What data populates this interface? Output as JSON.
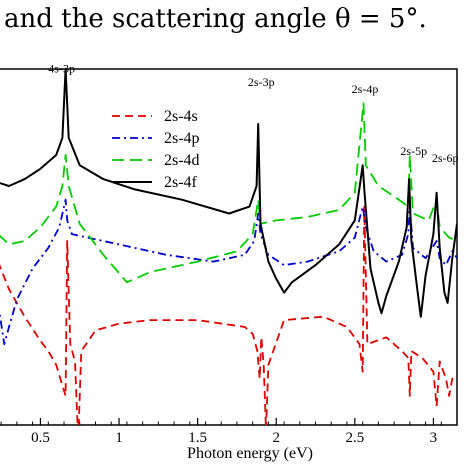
{
  "caption": {
    "text": "and the scattering angle θ = 5°."
  },
  "colors": {
    "2s-4s": "#dd0000",
    "2s-4p": "#0000cc",
    "2s-4d": "#00cc00",
    "2s-4f": "#000000"
  },
  "chart_data": {
    "type": "line",
    "title": "",
    "xlabel": "Photon energy (eV)",
    "ylabel": "",
    "xlim": [
      0.23,
      3.15
    ],
    "ylim": [
      0.0,
      1.0
    ],
    "xticks": [
      0.5,
      1,
      1.5,
      2,
      2.5,
      3
    ],
    "xtick_labels": [
      "0.5",
      "1",
      "1.5",
      "2",
      "2.5",
      "3"
    ],
    "grid": false,
    "legend_position": "top-center",
    "annotations": [
      "4s-3p",
      "2s-3p",
      "2s-4p",
      "2s-5p",
      "2s-6p"
    ],
    "series": [
      {
        "name": "2s-4s",
        "style": "dashed",
        "points": [
          [
            0.23,
            0.44
          ],
          [
            0.3,
            0.36
          ],
          [
            0.4,
            0.28
          ],
          [
            0.5,
            0.21
          ],
          [
            0.55,
            0.18
          ],
          [
            0.6,
            0.14
          ],
          [
            0.64,
            0.08
          ],
          [
            0.66,
            0.05
          ],
          [
            0.67,
            0.5
          ],
          [
            0.69,
            0.2
          ],
          [
            0.72,
            0.15
          ],
          [
            0.74,
            -0.08
          ],
          [
            0.76,
            0.18
          ],
          [
            0.85,
            0.24
          ],
          [
            1.0,
            0.26
          ],
          [
            1.2,
            0.27
          ],
          [
            1.5,
            0.27
          ],
          [
            1.8,
            0.25
          ],
          [
            1.85,
            0.23
          ],
          [
            1.88,
            0.18
          ],
          [
            1.895,
            0.1
          ],
          [
            1.905,
            0.22
          ],
          [
            1.92,
            0.14
          ],
          [
            1.935,
            -0.05
          ],
          [
            1.95,
            0.14
          ],
          [
            2.05,
            0.27
          ],
          [
            2.3,
            0.28
          ],
          [
            2.45,
            0.25
          ],
          [
            2.53,
            0.2
          ],
          [
            2.55,
            0.12
          ],
          [
            2.56,
            0.6
          ],
          [
            2.58,
            0.2
          ],
          [
            2.7,
            0.22
          ],
          [
            2.8,
            0.18
          ],
          [
            2.84,
            0.16
          ],
          [
            2.85,
            0.05
          ],
          [
            2.86,
            0.18
          ],
          [
            2.93,
            0.16
          ],
          [
            3.0,
            0.12
          ],
          [
            3.02,
            0.02
          ],
          [
            3.04,
            0.15
          ],
          [
            3.08,
            0.1
          ],
          [
            3.1,
            0.05
          ],
          [
            3.12,
            0.1
          ],
          [
            3.15,
            0.1
          ]
        ]
      },
      {
        "name": "2s-4p",
        "style": "dash-dot",
        "points": [
          [
            0.23,
            0.32
          ],
          [
            0.27,
            0.2
          ],
          [
            0.3,
            0.25
          ],
          [
            0.35,
            0.33
          ],
          [
            0.45,
            0.42
          ],
          [
            0.55,
            0.48
          ],
          [
            0.62,
            0.54
          ],
          [
            0.66,
            0.62
          ],
          [
            0.67,
            0.56
          ],
          [
            0.7,
            0.52
          ],
          [
            0.8,
            0.51
          ],
          [
            1.0,
            0.49
          ],
          [
            1.3,
            0.46
          ],
          [
            1.6,
            0.44
          ],
          [
            1.8,
            0.46
          ],
          [
            1.86,
            0.5
          ],
          [
            1.885,
            0.58
          ],
          [
            1.9,
            0.52
          ],
          [
            1.95,
            0.46
          ],
          [
            2.05,
            0.43
          ],
          [
            2.2,
            0.44
          ],
          [
            2.4,
            0.47
          ],
          [
            2.5,
            0.51
          ],
          [
            2.55,
            0.6
          ],
          [
            2.57,
            0.54
          ],
          [
            2.62,
            0.47
          ],
          [
            2.7,
            0.44
          ],
          [
            2.8,
            0.46
          ],
          [
            2.84,
            0.52
          ],
          [
            2.85,
            0.6
          ],
          [
            2.87,
            0.48
          ],
          [
            2.95,
            0.45
          ],
          [
            3.02,
            0.5
          ],
          [
            3.04,
            0.45
          ],
          [
            3.08,
            0.43
          ],
          [
            3.12,
            0.47
          ],
          [
            3.15,
            0.45
          ]
        ]
      },
      {
        "name": "2s-4d",
        "style": "long-dash",
        "points": [
          [
            0.23,
            0.52
          ],
          [
            0.3,
            0.49
          ],
          [
            0.4,
            0.5
          ],
          [
            0.5,
            0.54
          ],
          [
            0.6,
            0.6
          ],
          [
            0.64,
            0.66
          ],
          [
            0.66,
            0.75
          ],
          [
            0.68,
            0.66
          ],
          [
            0.75,
            0.55
          ],
          [
            0.9,
            0.46
          ],
          [
            1.05,
            0.38
          ],
          [
            1.2,
            0.41
          ],
          [
            1.5,
            0.44
          ],
          [
            1.75,
            0.47
          ],
          [
            1.85,
            0.52
          ],
          [
            1.885,
            0.62
          ],
          [
            1.9,
            0.55
          ],
          [
            2.0,
            0.56
          ],
          [
            2.2,
            0.57
          ],
          [
            2.4,
            0.59
          ],
          [
            2.5,
            0.64
          ],
          [
            2.555,
            0.9
          ],
          [
            2.57,
            0.72
          ],
          [
            2.65,
            0.66
          ],
          [
            2.75,
            0.63
          ],
          [
            2.84,
            0.6
          ],
          [
            2.85,
            0.75
          ],
          [
            2.87,
            0.58
          ],
          [
            2.97,
            0.56
          ],
          [
            3.02,
            0.62
          ],
          [
            3.04,
            0.54
          ],
          [
            3.1,
            0.51
          ],
          [
            3.15,
            0.5
          ]
        ]
      },
      {
        "name": "2s-4f",
        "style": "solid",
        "points": [
          [
            0.23,
            0.67
          ],
          [
            0.3,
            0.66
          ],
          [
            0.4,
            0.68
          ],
          [
            0.5,
            0.71
          ],
          [
            0.6,
            0.75
          ],
          [
            0.64,
            0.8
          ],
          [
            0.66,
            1.0
          ],
          [
            0.68,
            0.8
          ],
          [
            0.75,
            0.72
          ],
          [
            0.9,
            0.68
          ],
          [
            1.1,
            0.65
          ],
          [
            1.4,
            0.62
          ],
          [
            1.7,
            0.58
          ],
          [
            1.83,
            0.6
          ],
          [
            1.875,
            0.66
          ],
          [
            1.885,
            0.84
          ],
          [
            1.9,
            0.55
          ],
          [
            1.95,
            0.44
          ],
          [
            2.0,
            0.39
          ],
          [
            2.05,
            0.35
          ],
          [
            2.1,
            0.38
          ],
          [
            2.25,
            0.43
          ],
          [
            2.4,
            0.49
          ],
          [
            2.5,
            0.56
          ],
          [
            2.55,
            0.72
          ],
          [
            2.56,
            0.65
          ],
          [
            2.6,
            0.42
          ],
          [
            2.65,
            0.32
          ],
          [
            2.67,
            0.29
          ],
          [
            2.7,
            0.34
          ],
          [
            2.78,
            0.44
          ],
          [
            2.83,
            0.54
          ],
          [
            2.845,
            0.68
          ],
          [
            2.86,
            0.5
          ],
          [
            2.9,
            0.35
          ],
          [
            2.92,
            0.28
          ],
          [
            2.95,
            0.4
          ],
          [
            3.0,
            0.52
          ],
          [
            3.02,
            0.64
          ],
          [
            3.04,
            0.48
          ],
          [
            3.07,
            0.35
          ],
          [
            3.09,
            0.32
          ],
          [
            3.12,
            0.45
          ],
          [
            3.15,
            0.55
          ]
        ]
      }
    ]
  }
}
